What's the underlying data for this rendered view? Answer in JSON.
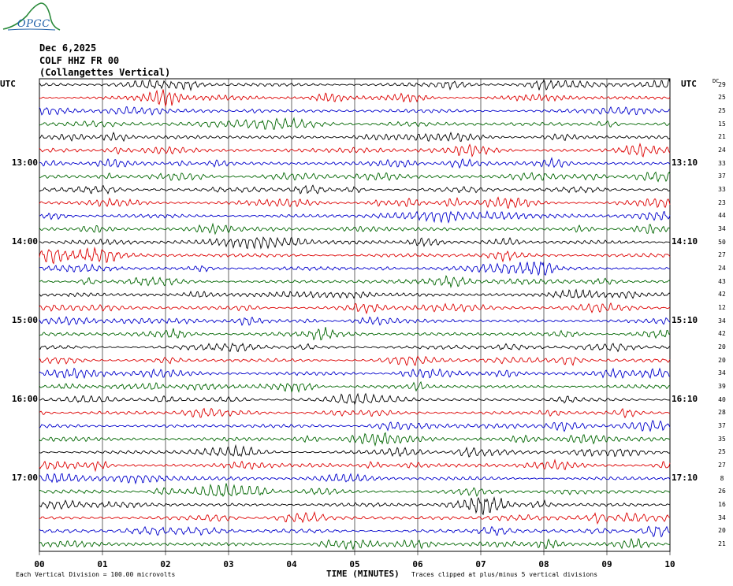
{
  "header": {
    "logo_text": "OPGC",
    "date": "Dec 6,2025",
    "station": "COLF HHZ FR 00",
    "location": "(Collangettes Vertical)"
  },
  "utc_left": "UTC",
  "utc_right": "UTC",
  "dc_header": "DC",
  "footer": {
    "scale_note": "Each Vertical Division = 100.00 microvolts",
    "clip_note": "Traces clipped at plus/minus 5 vertical divisions"
  },
  "colors": {
    "trace_cycle": [
      "#000000",
      "#dd0000",
      "#0000cc",
      "#006600"
    ],
    "grid": "#000000",
    "logo": "#2a8a3a"
  },
  "chart_data": {
    "type": "line",
    "title": "",
    "xlabel": "TIME (MINUTES)",
    "ylabel": "",
    "xlim": [
      0,
      10
    ],
    "x_ticks": [
      "00",
      "01",
      "02",
      "03",
      "04",
      "05",
      "06",
      "07",
      "08",
      "09",
      "10"
    ],
    "grid": true,
    "trace_count": 36,
    "minutes_per_trace": 10,
    "hour_labels_left": [
      {
        "trace": 6,
        "label": "13:00"
      },
      {
        "trace": 12,
        "label": "14:00"
      },
      {
        "trace": 18,
        "label": "15:00"
      },
      {
        "trace": 24,
        "label": "16:00"
      },
      {
        "trace": 30,
        "label": "17:00"
      }
    ],
    "hour_labels_right": [
      {
        "trace": 6,
        "label": "13:10"
      },
      {
        "trace": 12,
        "label": "14:10"
      },
      {
        "trace": 18,
        "label": "15:10"
      },
      {
        "trace": 24,
        "label": "16:10"
      },
      {
        "trace": 30,
        "label": "17:10"
      }
    ],
    "dc_offsets": [
      "29",
      "25",
      "25",
      "15",
      "21",
      "24",
      "33",
      "37",
      "33",
      "23",
      "44",
      "34",
      "50",
      "27",
      "24",
      "43",
      "42",
      "12",
      "34",
      "42",
      "20",
      "20",
      "34",
      "39",
      "40",
      "28",
      "37",
      "35",
      "25",
      "27",
      "8",
      "26",
      "16",
      "34",
      "20",
      "21"
    ]
  }
}
